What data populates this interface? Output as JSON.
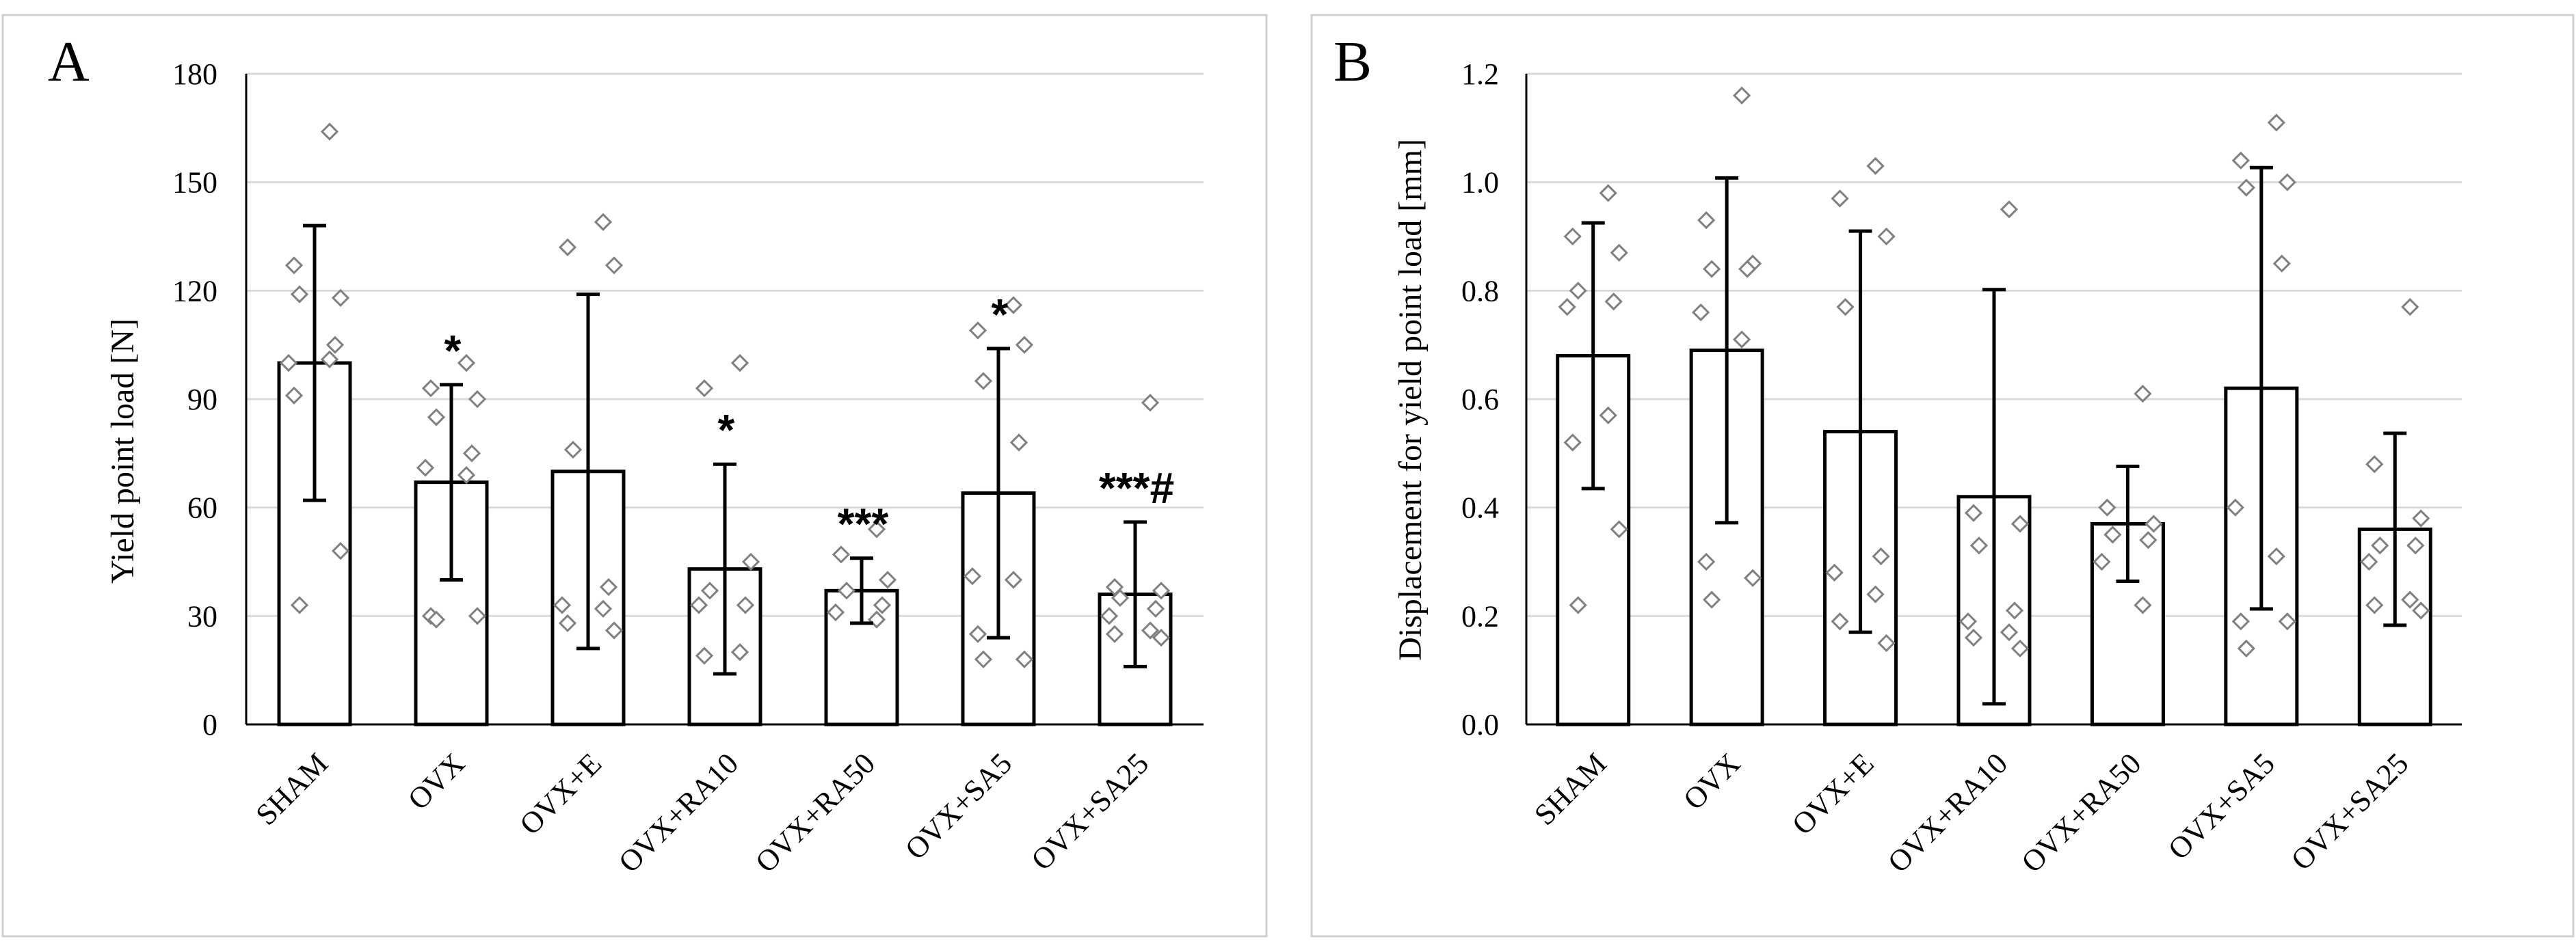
{
  "chart_data": [
    {
      "panel": "A",
      "type": "bar",
      "ylabel": "Yield point load [N]",
      "xlabel": "",
      "ylim": [
        0,
        180
      ],
      "yticks": [
        0,
        30,
        60,
        90,
        120,
        150,
        180
      ],
      "grid": true,
      "categories": [
        "SHAM",
        "OVX",
        "OVX+E",
        "OVX+RA10",
        "OVX+RA50",
        "OVX+SA5",
        "OVX+SA25"
      ],
      "values": [
        100,
        67,
        70,
        43,
        37,
        64,
        36
      ],
      "error": [
        38,
        27,
        49,
        29,
        9,
        40,
        20
      ],
      "significance": [
        "",
        "*",
        "",
        "*",
        "***",
        "*",
        "***#"
      ],
      "points": [
        [
          164,
          127,
          118,
          119,
          105,
          100,
          101,
          91,
          48,
          33
        ],
        [
          100,
          93,
          90,
          85,
          75,
          71,
          69,
          30,
          30,
          29
        ],
        [
          139,
          132,
          127,
          76,
          38,
          33,
          32,
          28,
          26
        ],
        [
          100,
          93,
          45,
          37,
          33,
          33,
          20,
          19
        ],
        [
          54,
          47,
          40,
          37,
          33,
          31,
          29
        ],
        [
          116,
          109,
          105,
          95,
          78,
          41,
          40,
          25,
          18,
          18
        ],
        [
          89,
          38,
          37,
          35,
          32,
          30,
          26,
          25,
          24
        ]
      ]
    },
    {
      "panel": "B",
      "type": "bar",
      "ylabel": "Displacement for yield point load [mm]",
      "xlabel": "",
      "ylim": [
        0,
        1.2
      ],
      "yticks": [
        "0.0",
        "0.2",
        "0.4",
        "0.6",
        "0.8",
        "1.0",
        "1.2"
      ],
      "grid": true,
      "categories": [
        "SHAM",
        "OVX",
        "OVX+E",
        "OVX+RA10",
        "OVX+RA50",
        "OVX+SA5",
        "OVX+SA25"
      ],
      "values": [
        0.68,
        0.69,
        0.54,
        0.42,
        0.37,
        0.62,
        0.36
      ],
      "error": [
        0.245,
        0.318,
        0.37,
        0.382,
        0.106,
        0.407,
        0.177
      ],
      "significance": [
        "",
        "",
        "",
        "",
        "",
        "",
        ""
      ],
      "points": [
        [
          0.98,
          0.9,
          0.87,
          0.8,
          0.78,
          0.77,
          0.57,
          0.52,
          0.36,
          0.22
        ],
        [
          1.16,
          0.93,
          0.85,
          0.84,
          0.84,
          0.76,
          0.71,
          0.3,
          0.27,
          0.23
        ],
        [
          1.03,
          0.97,
          0.9,
          0.77,
          0.31,
          0.28,
          0.24,
          0.19,
          0.15
        ],
        [
          0.95,
          0.39,
          0.37,
          0.33,
          0.21,
          0.19,
          0.17,
          0.16,
          0.14
        ],
        [
          0.61,
          0.4,
          0.37,
          0.35,
          0.34,
          0.3,
          0.22
        ],
        [
          1.11,
          1.04,
          1.0,
          0.99,
          0.85,
          0.4,
          0.31,
          0.19,
          0.19,
          0.14
        ],
        [
          0.77,
          0.48,
          0.38,
          0.33,
          0.33,
          0.3,
          0.23,
          0.22,
          0.21
        ]
      ]
    }
  ]
}
